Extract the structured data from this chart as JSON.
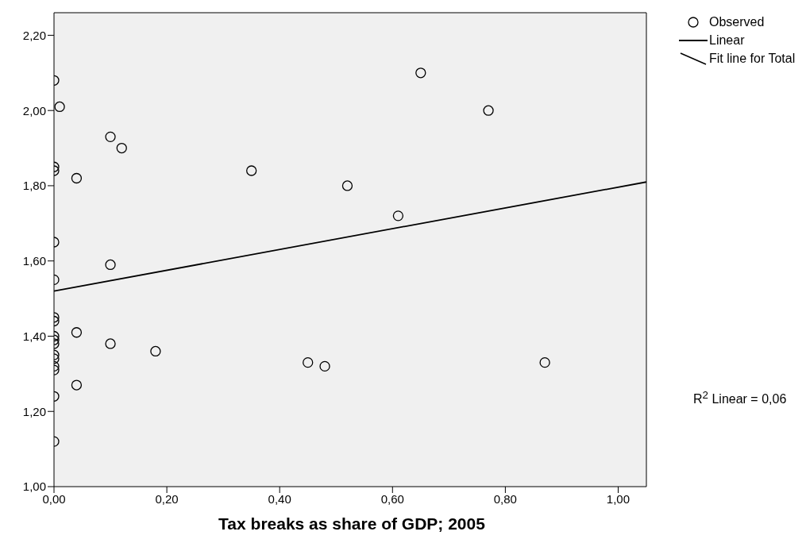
{
  "chart_data": {
    "type": "scatter",
    "xlabel": "Tax breaks as share of GDP; 2005",
    "xlim": [
      0,
      1.05
    ],
    "xticks": [
      {
        "value": 0,
        "label": "0,00"
      },
      {
        "value": 0.2,
        "label": "0,20"
      },
      {
        "value": 0.4,
        "label": "0,40"
      },
      {
        "value": 0.6,
        "label": "0,60"
      },
      {
        "value": 0.8,
        "label": "0,80"
      },
      {
        "value": 1,
        "label": "1,00"
      }
    ],
    "ylim": [
      1,
      2.26
    ],
    "yticks": [
      {
        "value": 1,
        "label": "1,00"
      },
      {
        "value": 1.2,
        "label": "1,20"
      },
      {
        "value": 1.4,
        "label": "1,40"
      },
      {
        "value": 1.6,
        "label": "1,60"
      },
      {
        "value": 1.8,
        "label": "1,80"
      },
      {
        "value": 2,
        "label": "2,00"
      },
      {
        "value": 2.2,
        "label": "2,20"
      }
    ],
    "grid": false,
    "legend": "top right",
    "marker": "circle",
    "series": [
      {
        "name": "Observed",
        "color": "#000000",
        "x": [
          0,
          0,
          0,
          0,
          0,
          0,
          0,
          0,
          0,
          0,
          0,
          0,
          0,
          0,
          0,
          0,
          0.01,
          0.04,
          0.04,
          0.04,
          0.1,
          0.1,
          0.1,
          0.12,
          0.18,
          0.35,
          0.45,
          0.48,
          0.52,
          0.61,
          0.65,
          0.77,
          0.87
        ],
        "values": [
          2.08,
          1.85,
          1.84,
          1.65,
          1.55,
          1.45,
          1.44,
          1.4,
          1.39,
          1.38,
          1.35,
          1.34,
          1.32,
          1.31,
          1.24,
          1.12,
          2.01,
          1.82,
          1.41,
          1.27,
          1.93,
          1.59,
          1.38,
          1.9,
          1.36,
          1.84,
          1.33,
          1.32,
          1.8,
          1.72,
          2.1,
          2.0,
          1.33
        ]
      },
      {
        "name": "Linear",
        "type": "line",
        "color": "#000000",
        "line_style": "solid",
        "marker": "none",
        "x": [
          0,
          1.05
        ],
        "values": [
          1.52,
          1.81
        ]
      }
    ],
    "annotations": [
      "Fit line for Total",
      "R$^{2}$ Linear = 0,06"
    ]
  }
}
